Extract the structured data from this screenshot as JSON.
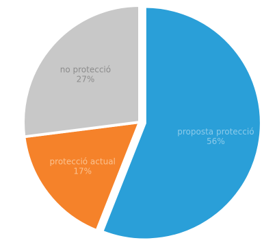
{
  "chart_data": {
    "type": "pie",
    "start_angle_deg": 0,
    "direction": "clockwise",
    "slices": [
      {
        "label": "proposta protecció",
        "value": 56,
        "value_label": "56%",
        "color": "#2a9fd8",
        "text_color": "#8ccbea",
        "exploded": true
      },
      {
        "label": "protecció actual",
        "value": 17,
        "value_label": "17%",
        "color": "#f5822a",
        "text_color": "#fbc290",
        "exploded": false
      },
      {
        "label": "no protecció",
        "value": 27,
        "value_label": "27%",
        "color": "#c8c8c8",
        "text_color": "#8c8c8c",
        "exploded": false
      }
    ]
  }
}
